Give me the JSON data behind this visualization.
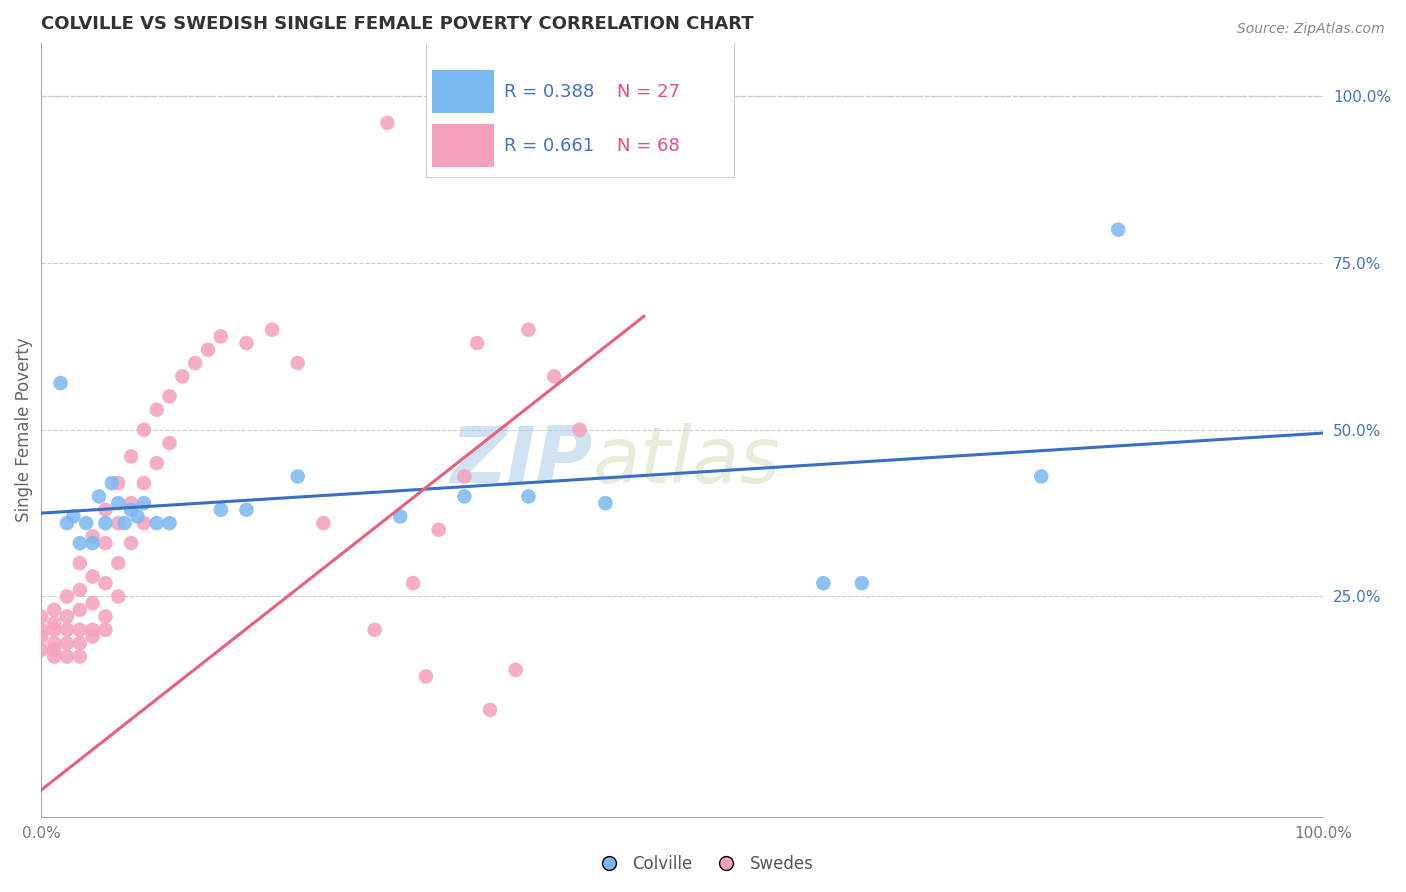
{
  "title": "COLVILLE VS SWEDISH SINGLE FEMALE POVERTY CORRELATION CHART",
  "source": "Source: ZipAtlas.com",
  "ylabel": "Single Female Poverty",
  "watermark_zip": "ZIP",
  "watermark_atlas": "atlas",
  "xlim": [
    0,
    1
  ],
  "ylim": [
    -0.08,
    1.08
  ],
  "ytick_values": [
    0.25,
    0.5,
    0.75,
    1.0
  ],
  "ytick_labels": [
    "25.0%",
    "50.0%",
    "75.0%",
    "100.0%"
  ],
  "legend_blue_r": "R = 0.388",
  "legend_blue_n": "N = 27",
  "legend_pink_r": "R = 0.661",
  "legend_pink_n": "N = 68",
  "colville_color": "#7ab8f0",
  "swedes_color": "#f5a0bc",
  "colville_scatter_x": [
    0.015,
    0.02,
    0.025,
    0.03,
    0.035,
    0.04,
    0.045,
    0.05,
    0.055,
    0.06,
    0.065,
    0.07,
    0.075,
    0.08,
    0.09,
    0.1,
    0.14,
    0.16,
    0.2,
    0.28,
    0.33,
    0.38,
    0.44,
    0.61,
    0.64,
    0.78,
    0.84
  ],
  "colville_scatter_y": [
    0.57,
    0.36,
    0.37,
    0.33,
    0.36,
    0.33,
    0.4,
    0.36,
    0.42,
    0.39,
    0.36,
    0.38,
    0.37,
    0.39,
    0.36,
    0.36,
    0.38,
    0.38,
    0.43,
    0.37,
    0.4,
    0.4,
    0.39,
    0.27,
    0.27,
    0.43,
    0.8
  ],
  "swedes_scatter_x": [
    0.0,
    0.0,
    0.0,
    0.0,
    0.01,
    0.01,
    0.01,
    0.01,
    0.01,
    0.01,
    0.02,
    0.02,
    0.02,
    0.02,
    0.02,
    0.03,
    0.03,
    0.03,
    0.03,
    0.03,
    0.03,
    0.04,
    0.04,
    0.04,
    0.04,
    0.04,
    0.05,
    0.05,
    0.05,
    0.05,
    0.05,
    0.06,
    0.06,
    0.06,
    0.06,
    0.07,
    0.07,
    0.07,
    0.08,
    0.08,
    0.08,
    0.09,
    0.09,
    0.1,
    0.1,
    0.11,
    0.12,
    0.13,
    0.14,
    0.16,
    0.18,
    0.2,
    0.22,
    0.27,
    0.3,
    0.34,
    0.35,
    0.37,
    0.44,
    0.46,
    0.48,
    0.38,
    0.4,
    0.42,
    0.33,
    0.31,
    0.29,
    0.26
  ],
  "swedes_scatter_y": [
    0.22,
    0.2,
    0.19,
    0.17,
    0.23,
    0.21,
    0.2,
    0.18,
    0.17,
    0.16,
    0.25,
    0.22,
    0.2,
    0.18,
    0.16,
    0.3,
    0.26,
    0.23,
    0.2,
    0.18,
    0.16,
    0.34,
    0.28,
    0.24,
    0.2,
    0.19,
    0.38,
    0.33,
    0.27,
    0.22,
    0.2,
    0.42,
    0.36,
    0.3,
    0.25,
    0.46,
    0.39,
    0.33,
    0.5,
    0.42,
    0.36,
    0.53,
    0.45,
    0.55,
    0.48,
    0.58,
    0.6,
    0.62,
    0.64,
    0.63,
    0.65,
    0.6,
    0.36,
    0.96,
    0.13,
    0.63,
    0.08,
    0.14,
    0.95,
    0.96,
    0.96,
    0.65,
    0.58,
    0.5,
    0.43,
    0.35,
    0.27,
    0.2
  ],
  "blue_line_x": [
    0.0,
    1.0
  ],
  "blue_line_y": [
    0.375,
    0.495
  ],
  "pink_line_x": [
    0.0,
    0.47
  ],
  "pink_line_y": [
    -0.04,
    0.67
  ],
  "diag_line_x": [
    0.0,
    1.0
  ],
  "diag_line_y": [
    1.0,
    1.0
  ],
  "background_color": "#ffffff",
  "grid_color": "#cccccc",
  "title_color": "#333333",
  "axis_label_color": "#666666",
  "right_tick_color": "#4472c4",
  "legend_r_color_blue": "#4472c4",
  "legend_n_color_blue": "#e84c8b",
  "legend_r_color_pink": "#4472c4",
  "legend_n_color_pink": "#e84c8b",
  "blue_line_color": "#3a6fc4",
  "pink_line_color": "#e8607a",
  "diag_line_color": "#cccccc"
}
